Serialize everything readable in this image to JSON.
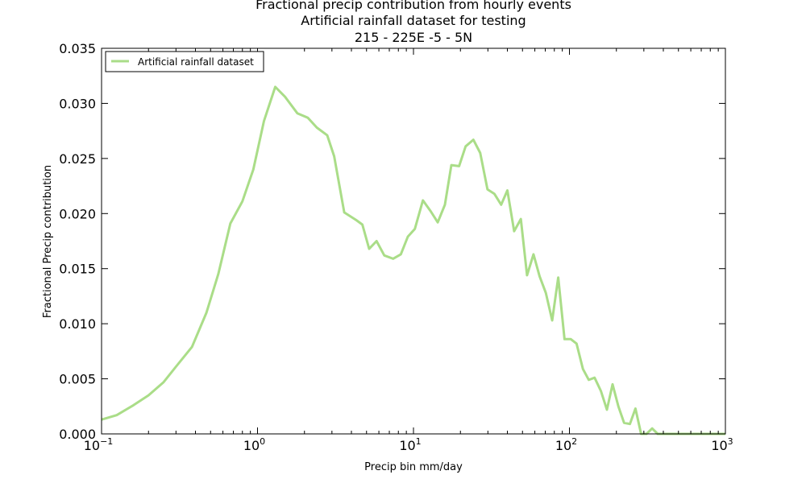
{
  "chart_data": {
    "type": "line",
    "title_lines": [
      "Fractional precip contribution from hourly events",
      "Artificial rainfall dataset for testing",
      "215 - 225E  -5 - 5N"
    ],
    "xlabel": "Precip bin mm/day",
    "ylabel": "Fractional Precip contribution",
    "xscale": "log",
    "xlim": [
      0.1,
      1000
    ],
    "ylim": [
      0.0,
      0.035
    ],
    "x_ticks": [
      {
        "base": "10",
        "exp": "−1",
        "value": 0.1
      },
      {
        "base": "10",
        "exp": "0",
        "value": 1
      },
      {
        "base": "10",
        "exp": "1",
        "value": 10
      },
      {
        "base": "10",
        "exp": "2",
        "value": 100
      },
      {
        "base": "10",
        "exp": "3",
        "value": 1000
      }
    ],
    "y_ticks": [
      "0.000",
      "0.005",
      "0.010",
      "0.015",
      "0.020",
      "0.025",
      "0.030",
      "0.035"
    ],
    "y_tick_values": [
      0.0,
      0.005,
      0.01,
      0.015,
      0.02,
      0.025,
      0.03,
      0.035
    ],
    "legend_position": "top-left",
    "grid": false,
    "series": [
      {
        "name": "Artificial rainfall dataset",
        "color": "#aadd88",
        "points": [
          [
            0.1,
            0.0013
          ],
          [
            0.125,
            0.0017
          ],
          [
            0.16,
            0.0026
          ],
          [
            0.2,
            0.0035
          ],
          [
            0.25,
            0.0047
          ],
          [
            0.3,
            0.0061
          ],
          [
            0.38,
            0.0079
          ],
          [
            0.47,
            0.011
          ],
          [
            0.56,
            0.0145
          ],
          [
            0.67,
            0.0191
          ],
          [
            0.8,
            0.0211
          ],
          [
            0.94,
            0.024
          ],
          [
            1.1,
            0.0284
          ],
          [
            1.3,
            0.0315
          ],
          [
            1.5,
            0.0306
          ],
          [
            1.8,
            0.0291
          ],
          [
            2.1,
            0.0287
          ],
          [
            2.4,
            0.0278
          ],
          [
            2.8,
            0.0271
          ],
          [
            3.1,
            0.0252
          ],
          [
            3.6,
            0.0201
          ],
          [
            4.3,
            0.0194
          ],
          [
            4.7,
            0.019
          ],
          [
            5.2,
            0.0168
          ],
          [
            5.8,
            0.0175
          ],
          [
            6.5,
            0.0162
          ],
          [
            7.4,
            0.0159
          ],
          [
            8.3,
            0.0163
          ],
          [
            9.2,
            0.0179
          ],
          [
            10.2,
            0.0186
          ],
          [
            11.5,
            0.0212
          ],
          [
            12.9,
            0.0202
          ],
          [
            14.3,
            0.0192
          ],
          [
            15.9,
            0.0208
          ],
          [
            17.5,
            0.0244
          ],
          [
            19.6,
            0.0243
          ],
          [
            21.6,
            0.0261
          ],
          [
            24.2,
            0.0267
          ],
          [
            26.8,
            0.0255
          ],
          [
            29.8,
            0.0222
          ],
          [
            33.0,
            0.0218
          ],
          [
            36.5,
            0.0208
          ],
          [
            40.0,
            0.0221
          ],
          [
            44.2,
            0.0184
          ],
          [
            48.8,
            0.0195
          ],
          [
            53.5,
            0.0144
          ],
          [
            58.8,
            0.0163
          ],
          [
            64.4,
            0.0143
          ],
          [
            70.6,
            0.0128
          ],
          [
            77.5,
            0.0103
          ],
          [
            84.8,
            0.0142
          ],
          [
            93.0,
            0.0086
          ],
          [
            102,
            0.0086
          ],
          [
            111,
            0.0082
          ],
          [
            122,
            0.0059
          ],
          [
            133,
            0.0049
          ],
          [
            145,
            0.0051
          ],
          [
            159,
            0.0039
          ],
          [
            174,
            0.0022
          ],
          [
            189,
            0.0045
          ],
          [
            206,
            0.0025
          ],
          [
            224,
            0.001
          ],
          [
            244,
            0.0009
          ],
          [
            265,
            0.0023
          ],
          [
            288,
            0.0
          ],
          [
            312,
            0.0
          ],
          [
            339,
            0.0005
          ],
          [
            368,
            0.0
          ],
          [
            450,
            0.0
          ],
          [
            600,
            0.0
          ],
          [
            800,
            0.0
          ],
          [
            1000,
            0.0
          ]
        ]
      }
    ]
  }
}
